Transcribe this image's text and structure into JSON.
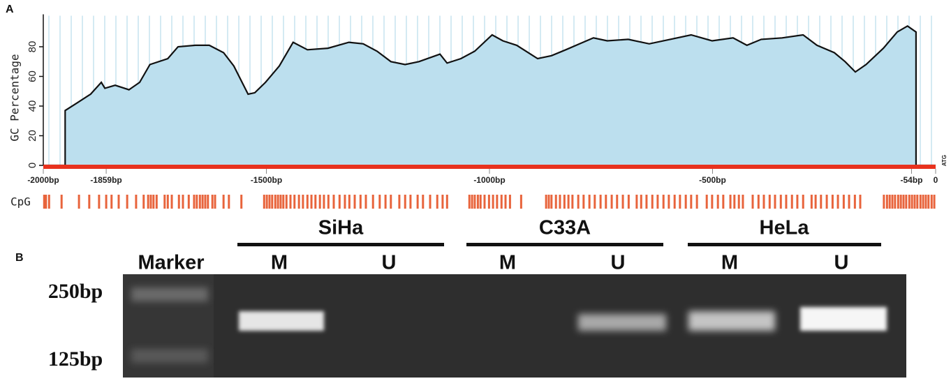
{
  "chart_data": {
    "type": "area",
    "panel_label": "A",
    "y_label": "GC Percentage",
    "annotation": "ATG",
    "track_label": "CpG",
    "x": [
      -2000,
      -1951,
      -1951,
      -1925,
      -1894,
      -1870,
      -1862,
      -1839,
      -1808,
      -1784,
      -1761,
      -1721,
      -1698,
      -1659,
      -1628,
      -1596,
      -1573,
      -1541,
      -1526,
      -1502,
      -1471,
      -1440,
      -1408,
      -1362,
      -1315,
      -1283,
      -1252,
      -1221,
      -1189,
      -1158,
      -1111,
      -1095,
      -1064,
      -1033,
      -994,
      -970,
      -939,
      -892,
      -861,
      -829,
      -798,
      -767,
      -736,
      -689,
      -642,
      -595,
      -548,
      -501,
      -454,
      -423,
      -391,
      -344,
      -297,
      -266,
      -227,
      -203,
      -180,
      -156,
      -117,
      -86,
      -63,
      -44,
      -44,
      0
    ],
    "values": [
      0,
      0,
      37,
      42,
      48,
      56,
      52,
      54,
      51,
      56,
      68,
      72,
      80,
      81,
      81,
      76,
      67,
      48,
      49,
      56,
      67,
      83,
      78,
      79,
      83,
      82,
      77,
      70,
      68,
      70,
      75,
      69,
      72,
      77,
      88,
      84,
      81,
      72,
      74,
      78,
      82,
      86,
      84,
      85,
      82,
      85,
      88,
      84,
      86,
      81,
      85,
      86,
      88,
      81,
      76,
      70,
      63,
      68,
      79,
      90,
      94,
      90,
      0,
      0
    ],
    "color": "#bcdfee",
    "line_color": "#111111",
    "xlim": [
      -2000,
      0
    ],
    "ylim": [
      0,
      100
    ],
    "xticks": [
      {
        "value": -2000,
        "label": "-2000bp"
      },
      {
        "value": -1859,
        "label": "-1859bp"
      },
      {
        "value": -1500,
        "label": "-1500bp"
      },
      {
        "value": -1000,
        "label": "-1000bp"
      },
      {
        "value": -500,
        "label": "-500bp"
      },
      {
        "value": -54,
        "label": "-54bp"
      },
      0
    ],
    "yticks": [
      0,
      20,
      40,
      60,
      80
    ],
    "cpg_color": "#e8643c",
    "cpg_sites": [
      -1998,
      -1994,
      -1987,
      -1959,
      -1920,
      -1897,
      -1875,
      -1859,
      -1847,
      -1831,
      -1812,
      -1792,
      -1775,
      -1765,
      -1759,
      -1753,
      -1746,
      -1728,
      -1721,
      -1712,
      -1696,
      -1687,
      -1674,
      -1662,
      -1656,
      -1649,
      -1643,
      -1637,
      -1631,
      -1621,
      -1615,
      -1596,
      -1584,
      -1556,
      -1505,
      -1499,
      -1493,
      -1487,
      -1480,
      -1474,
      -1468,
      -1462,
      -1455,
      -1446,
      -1437,
      -1427,
      -1418,
      -1408,
      -1399,
      -1390,
      -1380,
      -1371,
      -1361,
      -1349,
      -1336,
      -1324,
      -1314,
      -1302,
      -1289,
      -1277,
      -1261,
      -1246,
      -1233,
      -1221,
      -1202,
      -1189,
      -1177,
      -1161,
      -1149,
      -1133,
      -1117,
      -1105,
      -1095,
      -1045,
      -1039,
      -1033,
      -1026,
      -1020,
      -1011,
      -1001,
      -992,
      -983,
      -973,
      -964,
      -954,
      -929,
      -873,
      -867,
      -861,
      -851,
      -842,
      -832,
      -823,
      -814,
      -801,
      -789,
      -776,
      -764,
      -751,
      -739,
      -726,
      -714,
      -701,
      -688,
      -670,
      -660,
      -648,
      -635,
      -623,
      -610,
      -598,
      -585,
      -573,
      -560,
      -548,
      -535,
      -513,
      -501,
      -488,
      -476,
      -460,
      -451,
      -441,
      -432,
      -410,
      -397,
      -385,
      -372,
      -360,
      -347,
      -335,
      -322,
      -310,
      -297,
      -278,
      -269,
      -257,
      -244,
      -231,
      -219,
      -206,
      -194,
      -181,
      -169,
      -116,
      -109,
      -103,
      -97,
      -91,
      -84,
      -78,
      -72,
      -66,
      -59,
      -53,
      -47,
      -41,
      -34,
      -28,
      -22,
      -16,
      -9,
      -3
    ]
  },
  "gel": {
    "panel_label": "B",
    "marker_label": "Marker",
    "groups": [
      {
        "name": "SiHa",
        "lanes": [
          "M",
          "U"
        ]
      },
      {
        "name": "C33A",
        "lanes": [
          "M",
          "U"
        ]
      },
      {
        "name": "HeLa",
        "lanes": [
          "M",
          "U"
        ]
      }
    ],
    "size_labels": [
      "250bp",
      "125bp"
    ]
  }
}
